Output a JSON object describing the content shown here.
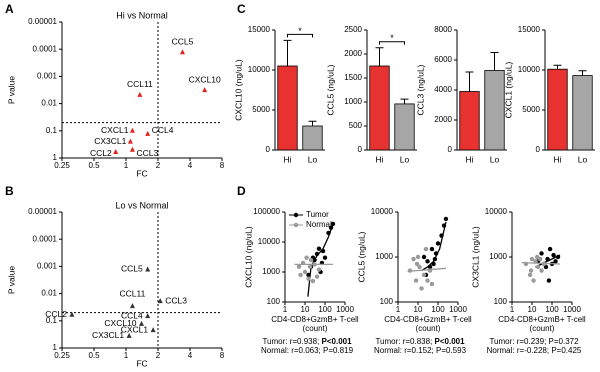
{
  "chart_data": [
    {
      "type": "scatter",
      "panel": "A",
      "title": "Hi vs Normal",
      "xlabel": "FC",
      "ylabel": "P value",
      "xscale": "log",
      "yscale": "log",
      "xlim": [
        0.25,
        8
      ],
      "ylim": [
        1,
        1e-05
      ],
      "xticks": [
        0.25,
        0.5,
        1,
        2,
        4,
        8
      ],
      "yticks": [
        1,
        0.1,
        0.01,
        0.001,
        0.0001,
        {
          "value": 1e-05,
          "label": "0.00001"
        }
      ],
      "ref_x": 2,
      "ref_y": 0.05,
      "color": "#e0201b",
      "point_labels": [
        "CCL5",
        "CXCL10",
        "CCL11",
        "CXCL1",
        "CCL4",
        "CX3CL1",
        "CCL3",
        "CCL2"
      ],
      "x": [
        3.4,
        5.5,
        1.35,
        1.15,
        1.6,
        1.1,
        1.15,
        0.8
      ],
      "values": [
        0.00013,
        0.0032,
        0.0048,
        0.1,
        0.13,
        0.25,
        0.5,
        0.6
      ]
    },
    {
      "type": "scatter",
      "panel": "B",
      "title": "Lo vs Normal",
      "xlabel": "FC",
      "ylabel": "P value",
      "xscale": "log",
      "yscale": "log",
      "xlim": [
        0.25,
        8
      ],
      "ylim": [
        1,
        1e-05
      ],
      "xticks": [
        0.25,
        0.5,
        1,
        2,
        4,
        8
      ],
      "yticks": [
        1,
        0.1,
        0.01,
        0.001,
        0.0001,
        {
          "value": 1e-05,
          "label": "0.00001"
        }
      ],
      "ref_x": 2,
      "ref_y": 0.05,
      "color": "#333333",
      "point_labels": [
        "CCL5",
        "CCL11",
        "CCL3",
        "CCL2",
        "CCL4",
        "CXCL10",
        "CXCL1",
        "CX3CL1"
      ],
      "x": [
        1.6,
        1.15,
        2.1,
        0.31,
        1.6,
        1.4,
        1.8,
        1.07
      ],
      "values": [
        0.0013,
        0.029,
        0.019,
        0.06,
        0.067,
        0.13,
        0.22,
        0.36
      ]
    },
    {
      "type": "bar",
      "panel": "C",
      "ylabel": "CXCL10 (ng/uL)",
      "categories": [
        "Hi",
        "Lo"
      ],
      "values": [
        10500,
        3000
      ],
      "errors": [
        3200,
        600
      ],
      "colors": [
        "#e8322f",
        "#a6a6a6"
      ],
      "ylim": [
        0,
        15000
      ],
      "yticks": [
        0,
        5000,
        10000,
        15000
      ],
      "significance": "*"
    },
    {
      "type": "bar",
      "ylabel": "CCL5 (ng/uL)",
      "categories": [
        "Hi",
        "Lo"
      ],
      "values": [
        1750,
        960
      ],
      "errors": [
        380,
        100
      ],
      "colors": [
        "#e8322f",
        "#a6a6a6"
      ],
      "ylim": [
        0,
        2500
      ],
      "yticks": [
        0,
        500,
        1000,
        1500,
        2000,
        2500
      ],
      "significance": "*"
    },
    {
      "type": "bar",
      "ylabel": "CCL3 (ng/uL)",
      "categories": [
        "Hi",
        "Lo"
      ],
      "values": [
        3900,
        5300
      ],
      "errors": [
        1300,
        1200
      ],
      "colors": [
        "#e8322f",
        "#a6a6a6"
      ],
      "ylim": [
        0,
        8000
      ],
      "yticks": [
        0,
        2000,
        4000,
        6000,
        8000
      ]
    },
    {
      "type": "bar",
      "ylabel": "CXCL1 (ng/uL)",
      "categories": [
        "Hi",
        "Lo"
      ],
      "values": [
        10100,
        9300
      ],
      "errors": [
        500,
        600
      ],
      "colors": [
        "#e8322f",
        "#a6a6a6"
      ],
      "ylim": [
        0,
        15000
      ],
      "yticks": [
        0,
        5000,
        10000,
        15000
      ]
    },
    {
      "type": "scatter",
      "panel": "D",
      "ylabel": "CXCL10 (ng/uL)",
      "xlabel": [
        "CD4-CD8+GzmB+ T-cell",
        "(count)"
      ],
      "xscale": "log",
      "yscale": "log",
      "xlim": [
        1,
        1000
      ],
      "ylim": [
        100,
        100000
      ],
      "xticks": [
        1,
        10,
        100,
        1000
      ],
      "yticks": [
        100,
        1000,
        10000,
        100000
      ],
      "legend": "upper left",
      "series": [
        {
          "name": "Tumor",
          "color": "#000000",
          "x": [
            20,
            25,
            30,
            40,
            60,
            80,
            100,
            150,
            200,
            250,
            15,
            50,
            70
          ],
          "values": [
            1500,
            3000,
            2500,
            4000,
            1000,
            5000,
            3000,
            20000,
            30000,
            40000,
            800,
            6000,
            2000
          ],
          "fit_x": [
            14,
            20,
            40,
            80,
            150,
            250
          ],
          "fit_y": [
            150,
            1500,
            3500,
            6000,
            15000,
            40000
          ]
        },
        {
          "name": "Normal",
          "color": "#9a9a9a",
          "x": [
            5,
            8,
            10,
            12,
            15,
            20,
            25,
            30,
            40,
            50,
            6,
            18
          ],
          "values": [
            1500,
            2000,
            1000,
            3000,
            600,
            2500,
            500,
            1800,
            700,
            1200,
            800,
            1500
          ],
          "fit_x": [
            3,
            250
          ],
          "fit_y": [
            1800,
            1800
          ]
        }
      ],
      "stats": [
        {
          "text": "Tumor: r=0.938; ",
          "p": "P<0.001",
          "bold": true
        },
        {
          "text": "Normal: r=0.063; ",
          "p": "P=0.819",
          "bold": false
        }
      ]
    },
    {
      "type": "scatter",
      "ylabel": "CCL5 (ng/uL)",
      "xlabel": [
        "CD4-CD8+GzmB+ T-cell",
        "(count)"
      ],
      "xscale": "log",
      "yscale": "log",
      "xlim": [
        1,
        1000
      ],
      "ylim": [
        100,
        10000
      ],
      "xticks": [
        1,
        10,
        100,
        1000
      ],
      "yticks": [
        100,
        1000,
        10000
      ],
      "series": [
        {
          "color": "#000000",
          "x": [
            20,
            30,
            40,
            50,
            60,
            80,
            100,
            150,
            200,
            250,
            25,
            70
          ],
          "values": [
            1000,
            800,
            600,
            1500,
            700,
            1200,
            2000,
            3000,
            5000,
            7000,
            400,
            900
          ],
          "fit_x": [
            15,
            30,
            60,
            120,
            250
          ],
          "fit_y": [
            500,
            600,
            800,
            1500,
            6000
          ]
        },
        {
          "color": "#9a9a9a",
          "x": [
            4,
            6,
            8,
            10,
            12,
            15,
            20,
            25,
            30,
            40,
            50,
            9
          ],
          "values": [
            500,
            900,
            300,
            1000,
            600,
            200,
            400,
            1500,
            300,
            500,
            250,
            700
          ],
          "fit_x": [
            3,
            250
          ],
          "fit_y": [
            480,
            560
          ]
        }
      ],
      "stats": [
        {
          "text": "Tumor: r=0.838; ",
          "p": "P<0.001",
          "bold": true
        },
        {
          "text": "Normal: r=0.152; ",
          "p": "P=0.593",
          "bold": false
        }
      ]
    },
    {
      "type": "scatter",
      "ylabel": "CX3CL1 (ng/uL)",
      "xlabel": [
        "CD4-CD8+GzmB+ T-cell",
        "(count)"
      ],
      "xscale": "log",
      "yscale": "log",
      "xlim": [
        1,
        1000
      ],
      "ylim": [
        100,
        10000
      ],
      "xticks": [
        1,
        10,
        100,
        1000
      ],
      "yticks": [
        100,
        1000,
        10000
      ],
      "series": [
        {
          "color": "#000000",
          "x": [
            20,
            30,
            40,
            60,
            80,
            100,
            150,
            200,
            50,
            70,
            120,
            25
          ],
          "values": [
            800,
            1200,
            700,
            900,
            1500,
            700,
            800,
            1000,
            600,
            300,
            1100,
            900
          ],
          "fit_x": [
            15,
            250
          ],
          "fit_y": [
            600,
            1100
          ]
        },
        {
          "color": "#9a9a9a",
          "x": [
            5,
            8,
            10,
            12,
            15,
            20,
            25,
            30,
            40,
            9,
            18
          ],
          "values": [
            700,
            400,
            900,
            300,
            800,
            600,
            900,
            500,
            700,
            500,
            1000
          ],
          "fit_x": [
            3,
            250
          ],
          "fit_y": [
            750,
            700
          ]
        }
      ],
      "stats": [
        {
          "text": "Tumor: r=0.239; ",
          "p": "P=0.372",
          "bold": false
        },
        {
          "text": "Normal: r=-0.228; ",
          "p": "P=0.425",
          "bold": false
        }
      ]
    }
  ]
}
